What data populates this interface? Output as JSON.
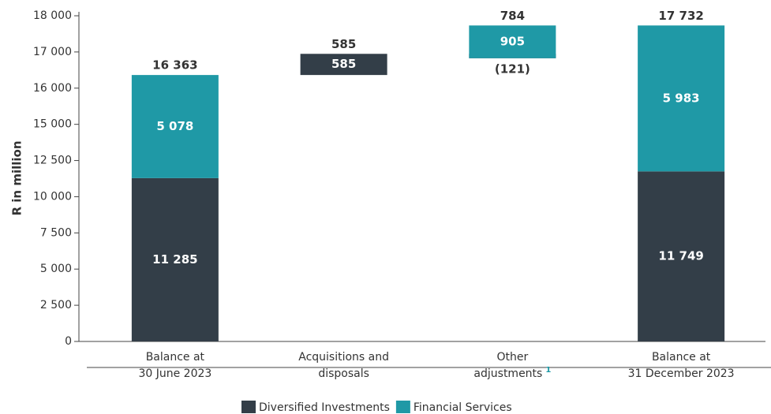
{
  "chart_data": {
    "type": "waterfall",
    "y_axis_label": "R in million",
    "categories": [
      [
        "Balance at",
        "30 June 2023"
      ],
      [
        "Acquisitions and",
        "disposals"
      ],
      [
        "Other",
        "adjustments"
      ],
      [
        "Balance at",
        "31 December 2023"
      ]
    ],
    "category_footnotes": [
      null,
      null,
      "1",
      null
    ],
    "measure": [
      "total",
      "relative",
      "relative",
      "total"
    ],
    "series": [
      {
        "name": "Diversified Investments",
        "color": "#333e48",
        "values": [
          11285,
          585,
          -121,
          11749
        ],
        "value_labels": [
          "11 285",
          "585",
          "(121)",
          "11 749"
        ]
      },
      {
        "name": "Financial Services",
        "color": "#1f99a6",
        "values": [
          5078,
          null,
          905,
          5983
        ],
        "value_labels": [
          "5 078",
          null,
          "905",
          "5 983"
        ]
      }
    ],
    "totals": [
      16363,
      585,
      784,
      17732
    ],
    "total_labels": [
      "16 363",
      "585",
      "784",
      "17 732"
    ],
    "ylim": [
      0,
      18000
    ],
    "yticks": [
      0,
      {
        "value": 2500,
        "label": "2 500"
      },
      {
        "value": 5000,
        "label": "5 000"
      },
      {
        "value": 7500,
        "label": "7 500"
      },
      {
        "value": 10000,
        "label": "10 000"
      },
      {
        "value": 12500,
        "label": "12 500"
      },
      {
        "value": 15000,
        "label": "15 000"
      },
      {
        "value": 16000,
        "label": "16 000"
      },
      {
        "value": 17000,
        "label": "17 000"
      },
      {
        "value": 18000,
        "label": "18 000"
      }
    ],
    "legend": "bottom"
  }
}
